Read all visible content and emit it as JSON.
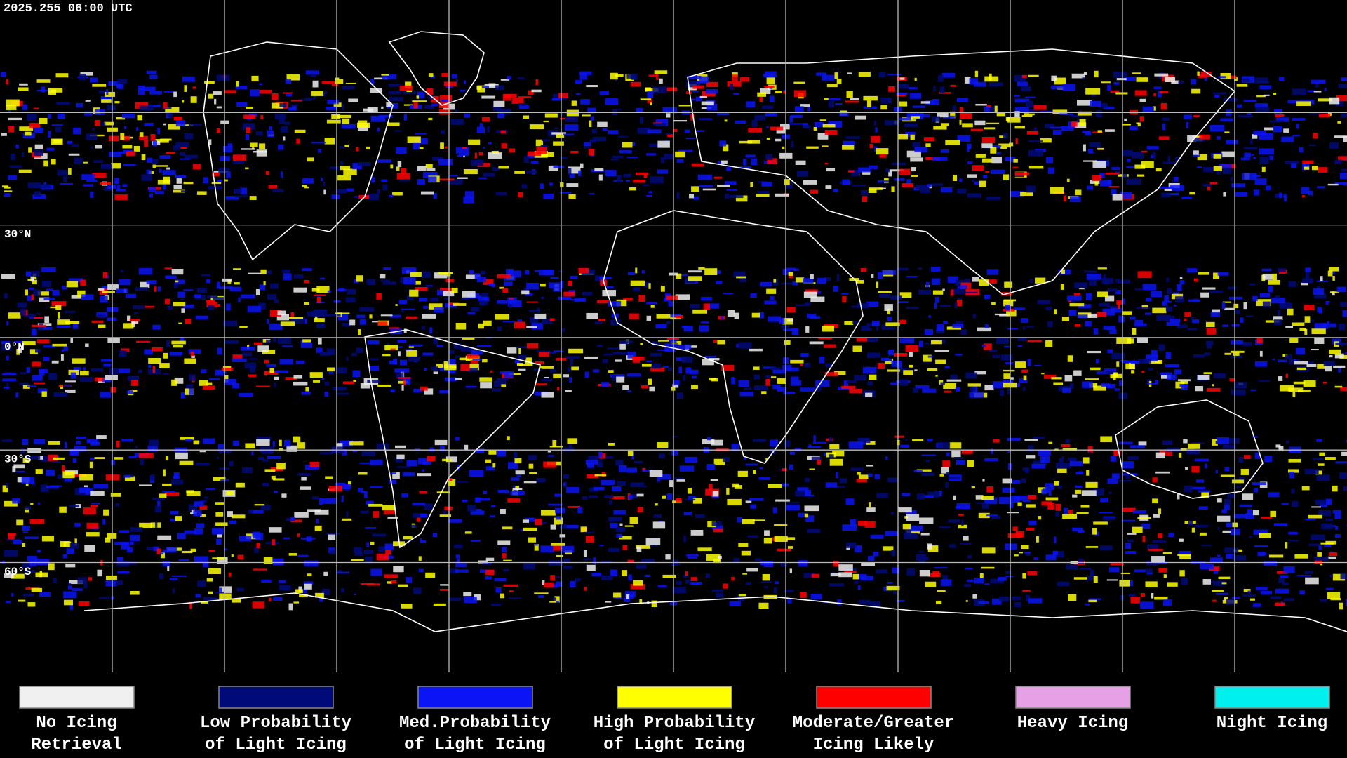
{
  "header": {
    "timestamp": "2025.255 06:00 UTC"
  },
  "map": {
    "lat_labels": [
      "30°N",
      "0°N",
      "30°S",
      "60°S"
    ]
  },
  "legend": {
    "items": [
      {
        "lines": [
          "No Icing",
          "Retrieval"
        ],
        "color": "#f0f0f0"
      },
      {
        "lines": [
          "Low Probability",
          "of Light Icing"
        ],
        "color": "#000a78"
      },
      {
        "lines": [
          "Med.Probability",
          "of Light Icing"
        ],
        "color": "#0a14f5"
      },
      {
        "lines": [
          "High Probability",
          "of Light Icing"
        ],
        "color": "#ffff00"
      },
      {
        "lines": [
          "Moderate/Greater",
          "Icing Likely"
        ],
        "color": "#ff0000"
      },
      {
        "lines": [
          "Heavy Icing"
        ],
        "color": "#e6a0e6"
      },
      {
        "lines": [
          "Night Icing"
        ],
        "color": "#00f0f0"
      }
    ]
  }
}
